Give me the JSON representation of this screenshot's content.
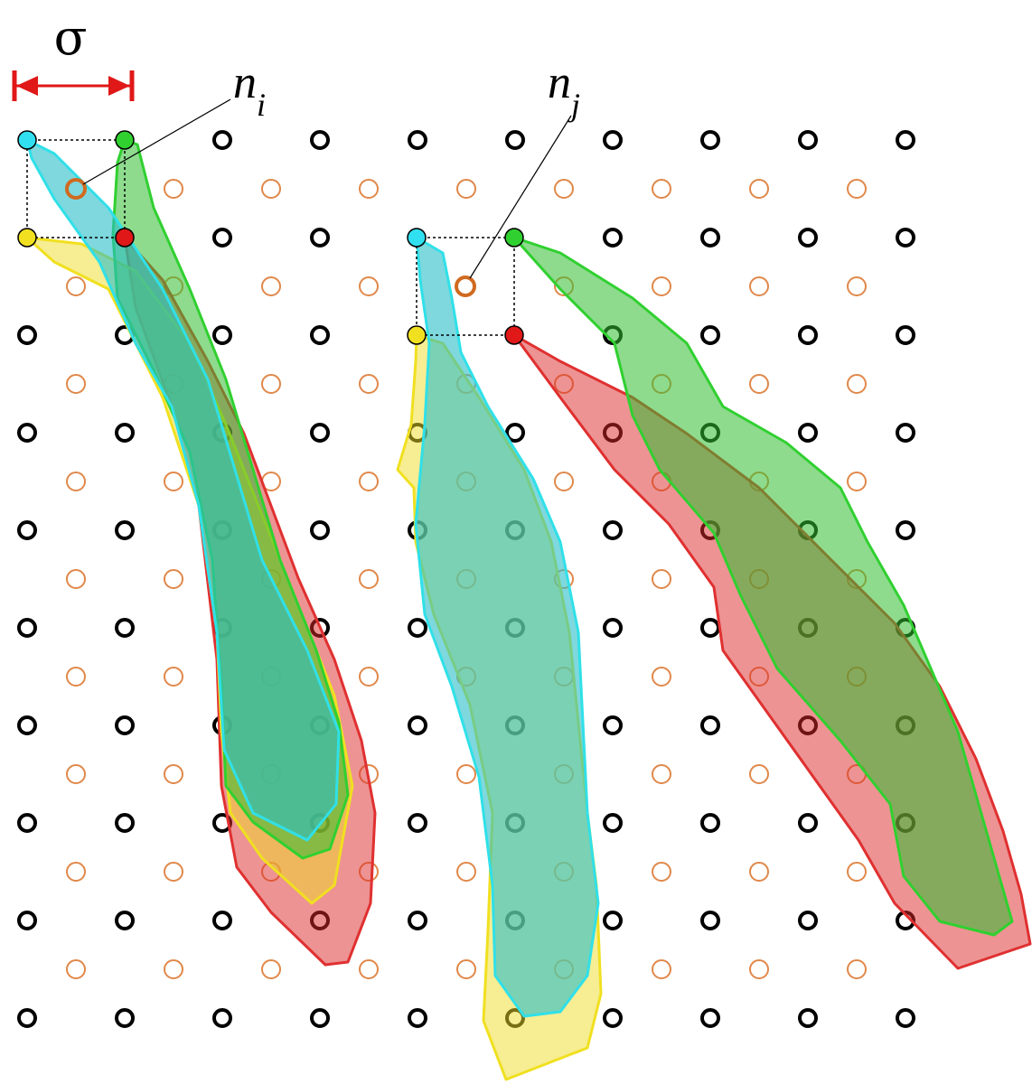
{
  "labels": {
    "sigma": "σ",
    "ni": {
      "base": "n",
      "sub": "i"
    },
    "nj": {
      "base": "n",
      "sub": "j"
    }
  }
}
